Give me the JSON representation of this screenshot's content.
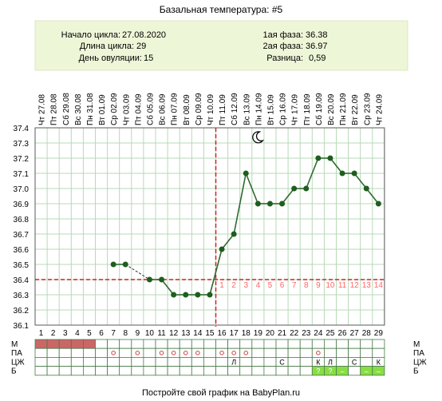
{
  "title": "Базальная температура: #5",
  "summary": {
    "cycle_start_label": "Начало цикла:",
    "cycle_start_value": "27.08.2020",
    "cycle_length_label": "Длина цикла:",
    "cycle_length_value": "29",
    "ovulation_day_label": "День овуляции:",
    "ovulation_day_value": "15",
    "phase1_label": "1ая фаза:",
    "phase1_value": "36.38",
    "phase2_label": "2ая фаза:",
    "phase2_value": "36.97",
    "difference_label": "Разница:",
    "difference_value": "0,59"
  },
  "footer": "Постройте свой график на BabyPlan.ru",
  "colors": {
    "line": "#2f6b2f",
    "marker": "#1e5e1e",
    "coverline": "#cc2222",
    "ovulation_line": "#cc2222",
    "header_bg": "#eef6d8",
    "grid": "#b8d8b8",
    "phase_number": "#ff6666",
    "menstruation": "#cc6666",
    "green_cell": "#88dd44"
  },
  "chart_data": {
    "type": "line",
    "ylim": [
      36.1,
      37.4
    ],
    "y_ticks": [
      "37.4",
      "37.3",
      "37.2",
      "37.1",
      "37.0",
      "36.9",
      "36.8",
      "36.7",
      "36.6",
      "36.5",
      "36.4",
      "36.3",
      "36.2",
      "36.1"
    ],
    "dates": [
      "Чт 27.08",
      "Пт 28.08",
      "Сб 29.08",
      "Вс 30.08",
      "Пн 31.08",
      "Вт 01.09",
      "Ср 02.09",
      "Чт 03.09",
      "Пт 04.09",
      "Сб 05.09",
      "Вс 06.09",
      "Пн 07.09",
      "Вт 08.09",
      "Ср 09.09",
      "Чт 10.09",
      "Пт 11.09",
      "Сб 12.09",
      "Вс 13.09",
      "Пн 14.09",
      "Вт 15.09",
      "Ср 16.09",
      "Чт 17.09",
      "Пт 18.09",
      "Сб 19.09",
      "Вс 20.09",
      "Пн 21.09",
      "Вт 22.09",
      "Ср 23.09",
      "Чт 24.09"
    ],
    "cycle_days": [
      "1",
      "2",
      "3",
      "4",
      "5",
      "6",
      "7",
      "8",
      "9",
      "10",
      "11",
      "12",
      "13",
      "14",
      "15",
      "16",
      "17",
      "18",
      "19",
      "20",
      "21",
      "22",
      "23",
      "24",
      "25",
      "26",
      "27",
      "28",
      "29"
    ],
    "series": [
      {
        "values": [
          null,
          null,
          null,
          null,
          null,
          null,
          36.5,
          36.5,
          null,
          36.4,
          36.4,
          36.3,
          36.3,
          36.3,
          36.3,
          36.6,
          36.7,
          37.1,
          36.9,
          36.9,
          36.9,
          37.0,
          37.0,
          37.2,
          37.2,
          37.1,
          37.1,
          37.0,
          36.9
        ]
      }
    ],
    "coverline": 36.4,
    "ovulation_day": 15,
    "post_ovulation_numbers": [
      "1",
      "2",
      "3",
      "4",
      "5",
      "6",
      "7",
      "8",
      "9",
      "10",
      "11",
      "12",
      "13",
      "14"
    ],
    "moon_day": 19,
    "bottom_rows": {
      "labels": [
        "М",
        "ПА",
        "ЦЖ",
        "Б"
      ],
      "M": [
        "f",
        "f",
        "f",
        "f",
        "f",
        "",
        "",
        "",
        "",
        "",
        "",
        "",
        "",
        "",
        "",
        "",
        "",
        "",
        "",
        "",
        "",
        "",
        "",
        "",
        "",
        "",
        "",
        "",
        ""
      ],
      "PA": [
        "",
        "",
        "",
        "",
        "",
        "",
        "o",
        "",
        "o",
        "",
        "o",
        "o",
        "o",
        "o",
        "",
        "o",
        "o",
        "o",
        "",
        "",
        "",
        "",
        "",
        "o",
        "",
        "",
        "",
        "",
        ""
      ],
      "CJ": [
        "",
        "",
        "",
        "",
        "",
        "",
        "",
        "",
        "",
        "",
        "",
        "",
        "",
        "",
        "",
        "",
        "Л",
        "",
        "",
        "",
        "С",
        "",
        "",
        "К",
        "Л",
        "",
        "С",
        "",
        "К"
      ],
      "B": [
        "",
        "",
        "",
        "",
        "",
        "",
        "",
        "",
        "",
        "",
        "",
        "",
        "",
        "",
        "",
        "",
        "",
        "",
        "",
        "",
        "",
        "",
        "",
        "g:?",
        "g:?",
        "g:–",
        "",
        "g:–",
        "g:–"
      ]
    }
  }
}
